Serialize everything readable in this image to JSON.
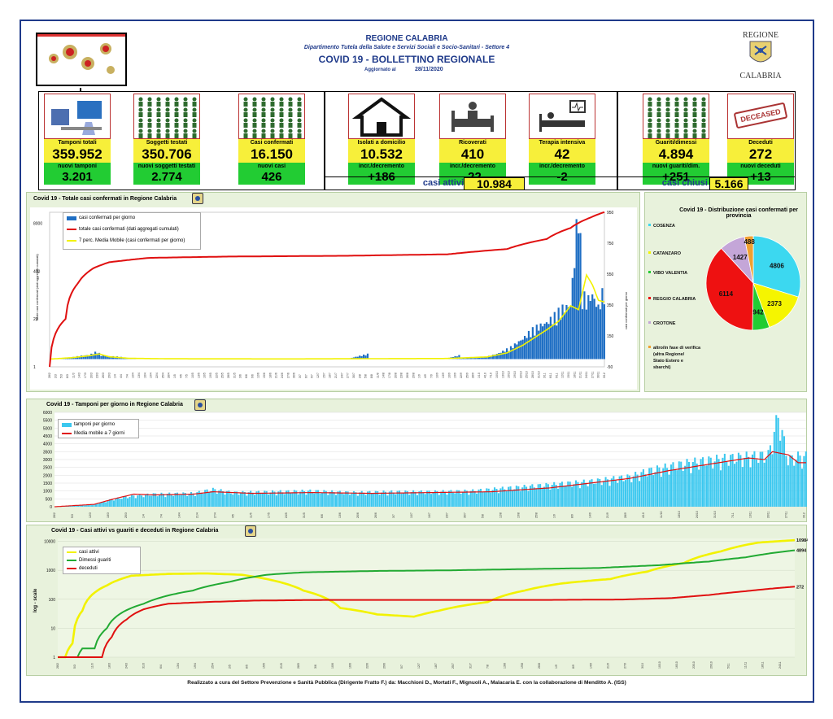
{
  "header": {
    "region": "REGIONE CALABRIA",
    "department": "Dipartimento Tutela della Salute e Servizi Sociali e Socio-Sanitari - Settore 4",
    "title": "COVID 19 - BOLLETTINO REGIONALE",
    "updated_label": "Aggiornato al",
    "updated_date": "28/11/2020",
    "logo_top": "REGIONE",
    "logo_bottom": "CALABRIA"
  },
  "tiles": {
    "tamponi_totali": {
      "label": "Tamponi totali",
      "value": "359.952",
      "sub_label": "nuovi tamponi",
      "sub_value": "3.201"
    },
    "soggetti_testati": {
      "label": "Soggetti testati",
      "value": "350.706",
      "sub_label": "nuovi soggetti testati",
      "sub_value": "2.774"
    },
    "casi_confermati": {
      "label": "Casi confermati",
      "value": "16.150",
      "sub_label": "nuovi casi",
      "sub_value": "426"
    },
    "isolati_domicilio": {
      "label": "Isolati a domicilio",
      "value": "10.532",
      "sub_label": "incr./decremento",
      "sub_value": "+186"
    },
    "ricoverati": {
      "label": "Ricoverati",
      "value": "410",
      "sub_label": "incr./decremento",
      "sub_value": "-22"
    },
    "terapia_intensiva": {
      "label": "Terapia intensiva",
      "value": "42",
      "sub_label": "incr./decremento",
      "sub_value": "-2"
    },
    "guariti": {
      "label": "Guariti/dimessi",
      "value": "4.894",
      "sub_label": "nuovi guariti/dim.",
      "sub_value": "+251"
    },
    "deceduti": {
      "label": "Deceduti",
      "value": "272",
      "sub_label": "nuovi deceduti",
      "sub_value": "+13"
    },
    "deceased_stamp": "DECEASED",
    "casi_attivi_label": "casi attivi",
    "casi_attivi_value": "10.984",
    "casi_chiusi_label": "casi chiusi",
    "casi_chiusi_value": "5.166"
  },
  "footer": "Realizzato a cura del Settore Prevenzione e Sanità Pubblica (Dirigente Fratto F.) da: Macchioni D., Mortati F., Mignuoli A., Malacaria E. con la collaborazione di Menditto A. (ISS)",
  "colors": {
    "blue": "#1f6fc4",
    "red": "#e01010",
    "yellow": "#f2f200",
    "green": "#22aa33",
    "cyan": "#3cc8ef"
  },
  "chart_data": [
    {
      "type": "bar",
      "title": "Covid 19 - Totale casi confermati in Regione Calabria",
      "ylabel_left": "Totale casi confermati (dati aggregati cumulati)",
      "ylabel_right": "casi confermati per giorno",
      "left_ticks": [
        "1",
        "20",
        "400",
        "8000"
      ],
      "right_ticks": [
        "-50",
        "150",
        "350",
        "550",
        "750",
        "950"
      ],
      "legend": [
        "casi confermati per giorno",
        "totale casi confermati (dati aggregati cumulati)",
        "7 perc. Media Mobile (casi confermati per giorno)"
      ],
      "daily_points": [
        [
          0,
          0
        ],
        [
          10,
          8
        ],
        [
          16,
          20
        ],
        [
          20,
          25
        ],
        [
          24,
          45
        ],
        [
          26,
          22
        ],
        [
          30,
          18
        ],
        [
          34,
          15
        ],
        [
          40,
          6
        ],
        [
          50,
          3
        ],
        [
          70,
          2
        ],
        [
          100,
          1
        ],
        [
          130,
          1
        ],
        [
          150,
          2
        ],
        [
          160,
          30
        ],
        [
          161,
          2
        ],
        [
          180,
          3
        ],
        [
          200,
          5
        ],
        [
          206,
          22
        ],
        [
          207,
          4
        ],
        [
          215,
          7
        ],
        [
          220,
          15
        ],
        [
          226,
          35
        ],
        [
          232,
          70
        ],
        [
          238,
          120
        ],
        [
          242,
          165
        ],
        [
          246,
          195
        ],
        [
          250,
          215
        ],
        [
          254,
          255
        ],
        [
          258,
          300
        ],
        [
          262,
          320
        ],
        [
          264,
          605
        ],
        [
          266,
          930
        ],
        [
          267,
          680
        ],
        [
          268,
          390
        ],
        [
          270,
          345
        ],
        [
          273,
          380
        ],
        [
          276,
          305
        ],
        [
          279,
          426
        ]
      ],
      "ma_points": [
        [
          0,
          0
        ],
        [
          12,
          10
        ],
        [
          20,
          22
        ],
        [
          25,
          33
        ],
        [
          30,
          15
        ],
        [
          40,
          5
        ],
        [
          60,
          2
        ],
        [
          120,
          1
        ],
        [
          200,
          4
        ],
        [
          220,
          14
        ],
        [
          230,
          40
        ],
        [
          238,
          90
        ],
        [
          244,
          140
        ],
        [
          250,
          190
        ],
        [
          256,
          245
        ],
        [
          262,
          345
        ],
        [
          266,
          320
        ],
        [
          270,
          545
        ],
        [
          273,
          480
        ],
        [
          276,
          380
        ],
        [
          279,
          370
        ]
      ],
      "cumulative_points": [
        [
          0,
          1
        ],
        [
          8,
          20
        ],
        [
          14,
          180
        ],
        [
          22,
          480
        ],
        [
          30,
          700
        ],
        [
          50,
          920
        ],
        [
          90,
          1000
        ],
        [
          150,
          1050
        ],
        [
          200,
          1150
        ],
        [
          230,
          1600
        ],
        [
          250,
          3000
        ],
        [
          262,
          6000
        ],
        [
          272,
          11500
        ],
        [
          279,
          16150
        ]
      ]
    },
    {
      "type": "pie",
      "title": "Covid 19 - Distribuzione casi confermati per provincia",
      "labels": [
        "COSENZA",
        "CATANZARO",
        "VIBO VALENTIA",
        "REGGIO CALABRIA",
        "CROTONE",
        "altro/in fase di verifica (altra Regione/ Stato Estero e sbarchi)"
      ],
      "values": [
        4806,
        2373,
        942,
        6114,
        1427,
        488
      ],
      "colors": [
        "#3cd8f0",
        "#f5f500",
        "#22cc33",
        "#ee1111",
        "#c4a6d8",
        "#f0a030"
      ]
    },
    {
      "type": "bar",
      "title": "Covid 19 - Tamponi per giorno in Regione Calabria",
      "y_ticks": [
        "0",
        "500",
        "1000",
        "1500",
        "2000",
        "2500",
        "3000",
        "3500",
        "4000",
        "4500",
        "5000",
        "5500",
        "6000"
      ],
      "ylim": [
        0,
        6000
      ],
      "legend": [
        "tamponi per giorno",
        "Media mobile a 7 giorni"
      ],
      "bar_points": [
        [
          0,
          0
        ],
        [
          20,
          150
        ],
        [
          30,
          500
        ],
        [
          40,
          700
        ],
        [
          50,
          800
        ],
        [
          70,
          850
        ],
        [
          80,
          1100
        ],
        [
          90,
          900
        ],
        [
          110,
          950
        ],
        [
          130,
          1000
        ],
        [
          150,
          900
        ],
        [
          170,
          950
        ],
        [
          190,
          950
        ],
        [
          210,
          1000
        ],
        [
          230,
          1200
        ],
        [
          250,
          1400
        ],
        [
          270,
          1600
        ],
        [
          290,
          1900
        ],
        [
          300,
          2300
        ],
        [
          320,
          2800
        ],
        [
          340,
          3100
        ],
        [
          350,
          3200
        ],
        [
          360,
          3300
        ],
        [
          365,
          5800
        ],
        [
          370,
          3000
        ],
        [
          375,
          3200
        ]
      ],
      "ma_points": [
        [
          0,
          0
        ],
        [
          20,
          150
        ],
        [
          30,
          500
        ],
        [
          40,
          800
        ],
        [
          50,
          750
        ],
        [
          70,
          800
        ],
        [
          80,
          950
        ],
        [
          100,
          850
        ],
        [
          130,
          900
        ],
        [
          160,
          850
        ],
        [
          190,
          900
        ],
        [
          220,
          950
        ],
        [
          250,
          1200
        ],
        [
          270,
          1500
        ],
        [
          290,
          1800
        ],
        [
          310,
          2300
        ],
        [
          330,
          2700
        ],
        [
          350,
          3100
        ],
        [
          358,
          3000
        ],
        [
          362,
          3500
        ],
        [
          370,
          3300
        ],
        [
          375,
          2800
        ],
        [
          378,
          2800
        ]
      ]
    },
    {
      "type": "line",
      "title": "Covid 19 - Casi attivi vs guariti e deceduti in Regione Calabria",
      "ylabel": "log - scale",
      "y_ticks": [
        "1",
        "10",
        "100",
        "1000",
        "10000"
      ],
      "series": [
        {
          "name": "casi attivi",
          "end_label": "10984",
          "points": [
            [
              0,
              1
            ],
            [
              3,
              1
            ],
            [
              6,
              3
            ],
            [
              10,
              40
            ],
            [
              20,
              300
            ],
            [
              30,
              650
            ],
            [
              45,
              750
            ],
            [
              60,
              780
            ],
            [
              75,
              700
            ],
            [
              85,
              500
            ],
            [
              100,
              200
            ],
            [
              115,
              50
            ],
            [
              130,
              30
            ],
            [
              145,
              25
            ],
            [
              155,
              40
            ],
            [
              175,
              80
            ],
            [
              190,
              200
            ],
            [
              205,
              350
            ],
            [
              225,
              500
            ],
            [
              240,
              900
            ],
            [
              255,
              1800
            ],
            [
              270,
              4500
            ],
            [
              285,
              9000
            ],
            [
              300,
              10984
            ]
          ]
        },
        {
          "name": "Dimessi guariti",
          "end_label": "4894",
          "points": [
            [
              0,
              1
            ],
            [
              8,
              1
            ],
            [
              10,
              2
            ],
            [
              15,
              2
            ],
            [
              20,
              10
            ],
            [
              35,
              70
            ],
            [
              55,
              200
            ],
            [
              70,
              400
            ],
            [
              85,
              700
            ],
            [
              100,
              850
            ],
            [
              130,
              950
            ],
            [
              160,
              1000
            ],
            [
              190,
              1100
            ],
            [
              220,
              1200
            ],
            [
              245,
              1500
            ],
            [
              265,
              2000
            ],
            [
              280,
              2800
            ],
            [
              300,
              4894
            ]
          ]
        },
        {
          "name": "deceduti",
          "end_label": "272",
          "points": [
            [
              0,
              1
            ],
            [
              18,
              1
            ],
            [
              22,
              5
            ],
            [
              28,
              20
            ],
            [
              35,
              45
            ],
            [
              45,
              70
            ],
            [
              60,
              80
            ],
            [
              80,
              90
            ],
            [
              110,
              95
            ],
            [
              150,
              95
            ],
            [
              200,
              95
            ],
            [
              230,
              98
            ],
            [
              250,
              110
            ],
            [
              265,
              140
            ],
            [
              280,
              190
            ],
            [
              300,
              272
            ]
          ]
        }
      ]
    }
  ]
}
